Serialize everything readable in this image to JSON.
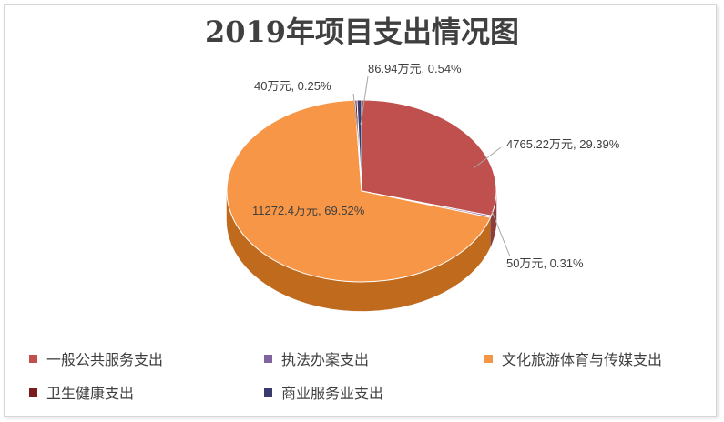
{
  "chart_data": {
    "type": "pie",
    "title": "2019年项目支出情况图",
    "unit": "万元",
    "slices": [
      {
        "name": "一般公共服务支出",
        "value": 4765.22,
        "percent": 29.39,
        "label": "4765.22万元, 29.39%",
        "color": "#C0504D",
        "side": "#8E3B39"
      },
      {
        "name": "执法办案支出",
        "value": 50,
        "percent": 0.31,
        "label": "50万元, 0.31%",
        "color": "#8064A2",
        "side": "#5E4A78"
      },
      {
        "name": "文化旅游体育与传媒支出",
        "value": 11272.4,
        "percent": 69.52,
        "label": "11272.4万元, 69.52%",
        "color": "#F79646",
        "side": "#C06A1E"
      },
      {
        "name": "卫生健康支出",
        "value": 40,
        "percent": 0.25,
        "label": "40万元, 0.25%",
        "color": "#7B1C1C",
        "side": "#551010"
      },
      {
        "name": "商业服务业支出",
        "value": 86.94,
        "percent": 0.54,
        "label": "86.94万元, 0.54%",
        "color": "#3B3A6E",
        "side": "#28274D"
      }
    ],
    "legend_position": "bottom"
  }
}
